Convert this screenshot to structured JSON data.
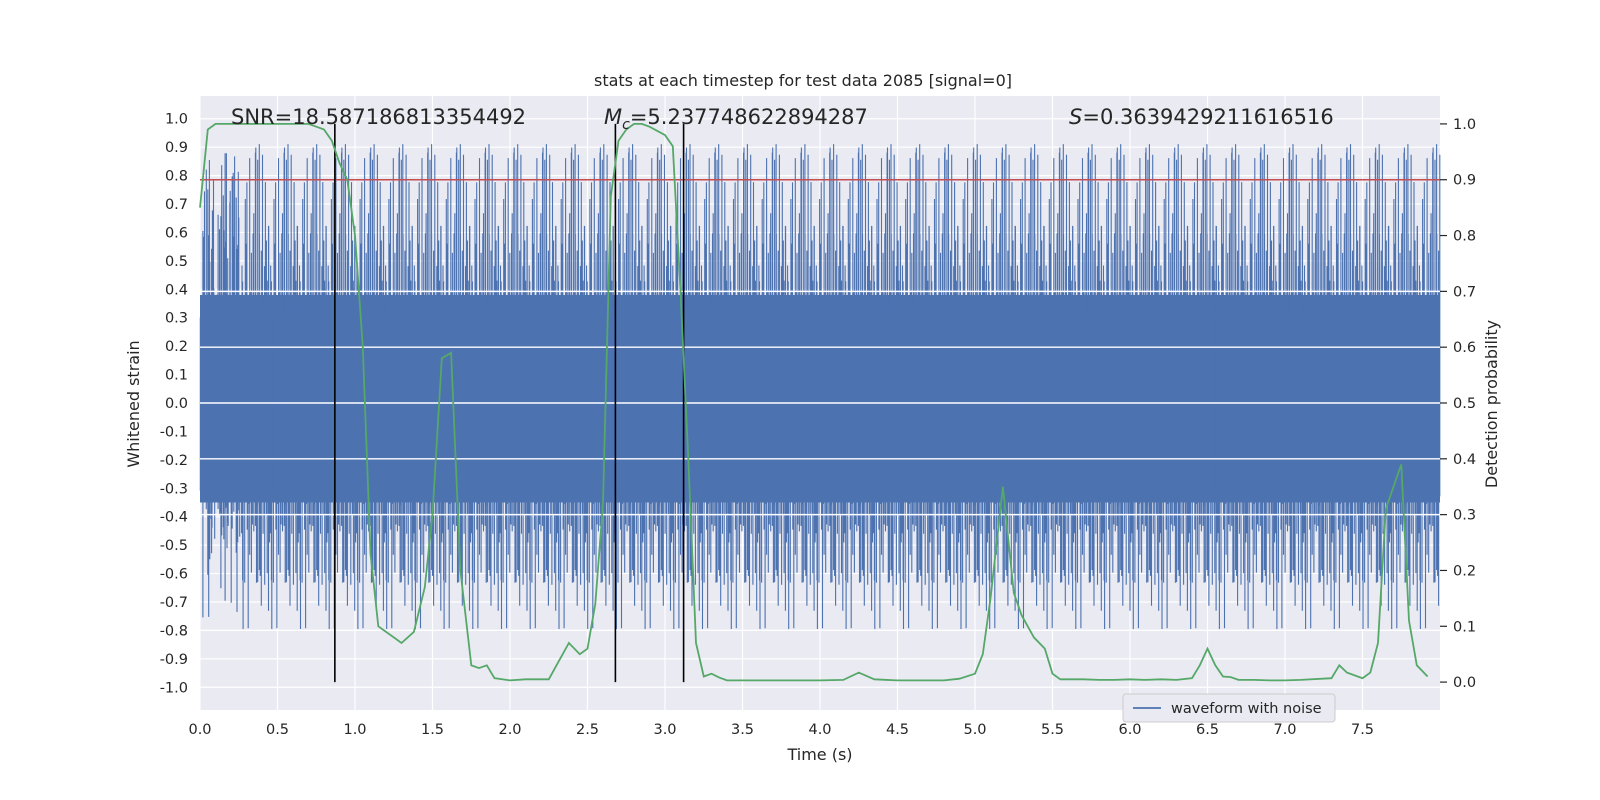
{
  "chart_data": {
    "type": "line",
    "title": "stats at each timestep for test data 2085 [signal=0]",
    "xlabel": "Time (s)",
    "ylabel": "Whitened strain",
    "y2label": "Detection probability",
    "xlim": [
      0.0,
      8.0
    ],
    "ylim": [
      -1.08,
      1.08
    ],
    "y2lim": [
      -0.05,
      1.05
    ],
    "xticks": [
      "0.0",
      "0.5",
      "1.0",
      "1.5",
      "2.0",
      "2.5",
      "3.0",
      "3.5",
      "4.0",
      "4.5",
      "5.0",
      "5.5",
      "6.0",
      "6.5",
      "7.0",
      "7.5"
    ],
    "yticks": [
      "1.0",
      "0.9",
      "0.8",
      "0.7",
      "0.6",
      "0.5",
      "0.4",
      "0.3",
      "0.2",
      "0.1",
      "0.0",
      "-0.1",
      "-0.2",
      "-0.3",
      "-0.4",
      "-0.5",
      "-0.6",
      "-0.7",
      "-0.8",
      "-0.9",
      "-1.0"
    ],
    "y2ticks": [
      "1.0",
      "0.9",
      "0.8",
      "0.7",
      "0.6",
      "0.5",
      "0.4",
      "0.3",
      "0.2",
      "0.1",
      "0.0"
    ],
    "annotations": {
      "snr": "SNR=18.587186813354492",
      "mc_symbol": "M",
      "mc_sub": "c",
      "mc_value": "=5.237748622894287",
      "s_symbol": "S",
      "s_value": "=0.3639429211616516"
    },
    "legend": {
      "label": "waveform with noise",
      "position": "lower right"
    },
    "threshold": {
      "y2": 0.9,
      "color": "#c44e52"
    },
    "vertical_lines_x": [
      0.87,
      2.68,
      3.12
    ],
    "waveform": {
      "name": "waveform with noise",
      "color": "#4c72b0",
      "amplitude_range": [
        -1.0,
        1.0
      ]
    },
    "detection_probability": {
      "name": "detection probability",
      "color": "#55a868",
      "x": [
        0.0,
        0.05,
        0.1,
        0.2,
        0.3,
        0.4,
        0.5,
        0.6,
        0.7,
        0.75,
        0.8,
        0.85,
        0.9,
        0.95,
        1.0,
        1.05,
        1.1,
        1.15,
        1.25,
        1.3,
        1.38,
        1.45,
        1.5,
        1.56,
        1.62,
        1.68,
        1.75,
        1.8,
        1.85,
        1.9,
        2.0,
        2.1,
        2.2,
        2.25,
        2.3,
        2.38,
        2.45,
        2.5,
        2.55,
        2.6,
        2.65,
        2.7,
        2.75,
        2.8,
        2.85,
        2.9,
        3.0,
        3.05,
        3.1,
        3.15,
        3.2,
        3.25,
        3.3,
        3.35,
        3.4,
        3.5,
        3.6,
        3.8,
        4.0,
        4.15,
        4.25,
        4.35,
        4.5,
        4.6,
        4.8,
        4.9,
        5.0,
        5.05,
        5.1,
        5.18,
        5.25,
        5.3,
        5.38,
        5.45,
        5.5,
        5.55,
        5.6,
        5.7,
        5.8,
        5.9,
        6.0,
        6.1,
        6.2,
        6.3,
        6.4,
        6.45,
        6.5,
        6.55,
        6.6,
        6.65,
        6.7,
        6.8,
        6.9,
        7.0,
        7.1,
        7.3,
        7.35,
        7.4,
        7.5,
        7.55,
        7.6,
        7.65,
        7.7,
        7.75,
        7.8,
        7.85,
        7.92
      ],
      "y": [
        0.85,
        0.99,
        1.0,
        1.0,
        1.0,
        1.0,
        1.0,
        1.0,
        1.0,
        0.995,
        0.99,
        0.97,
        0.93,
        0.9,
        0.8,
        0.6,
        0.23,
        0.1,
        0.08,
        0.07,
        0.09,
        0.17,
        0.3,
        0.58,
        0.59,
        0.2,
        0.03,
        0.025,
        0.03,
        0.007,
        0.003,
        0.005,
        0.005,
        0.005,
        0.03,
        0.07,
        0.05,
        0.06,
        0.14,
        0.32,
        0.87,
        0.97,
        0.99,
        1.0,
        1.0,
        0.995,
        0.98,
        0.96,
        0.7,
        0.4,
        0.07,
        0.01,
        0.015,
        0.008,
        0.003,
        0.003,
        0.003,
        0.003,
        0.003,
        0.004,
        0.017,
        0.005,
        0.003,
        0.003,
        0.003,
        0.006,
        0.015,
        0.05,
        0.15,
        0.35,
        0.16,
        0.12,
        0.08,
        0.06,
        0.015,
        0.005,
        0.005,
        0.005,
        0.004,
        0.004,
        0.005,
        0.004,
        0.005,
        0.004,
        0.007,
        0.03,
        0.06,
        0.03,
        0.01,
        0.009,
        0.004,
        0.004,
        0.003,
        0.003,
        0.004,
        0.007,
        0.03,
        0.017,
        0.007,
        0.017,
        0.07,
        0.31,
        0.35,
        0.39,
        0.11,
        0.03,
        0.01
      ]
    }
  }
}
